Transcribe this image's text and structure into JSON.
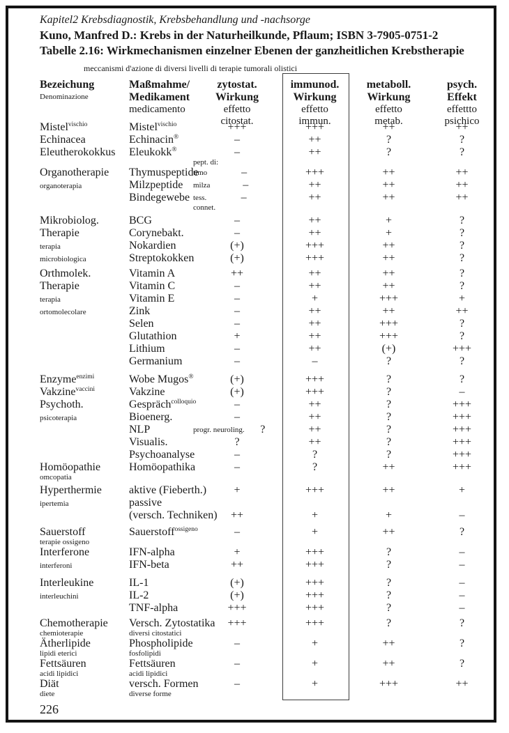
{
  "header": {
    "chapter": "Kapitel2 Krebsdiagnostik, Krebsbehandlung und -nachsorge",
    "source": "Kuno, Manfred D.: Krebs in der Naturheilkunde, Pflaum; ISBN 3-7905-0751-2",
    "table_title": "Tabelle 2.16: Wirkmechanismen einzelner Ebenen der ganzheitlichen Krebstherapie",
    "subtitle_it": "meccanismi d'azione di diversi livelli di terapie tumorali olistici"
  },
  "col_headers": {
    "c1": {
      "b1": "Bezeichung",
      "s1": "Denominazione"
    },
    "c2": {
      "b1": "Maßmahme/",
      "b2": "Medikament",
      "r1": "medicamento"
    },
    "c3": {
      "b1": "zytostat.",
      "b2": "Wirkung",
      "r1": "effetto",
      "r2": "citostat."
    },
    "c4": {
      "b1": "immunod.",
      "b2": "Wirkung",
      "r1": "effetto",
      "r2": "immun."
    },
    "c5": {
      "b1": "metaboll.",
      "b2": "Wirkung",
      "r1": "effetto",
      "r2": "metab."
    },
    "c6": {
      "b1": "psych.",
      "b2": "Effekt",
      "r1": "effettto",
      "r2": "psichico"
    }
  },
  "page": {
    "number": "226"
  },
  "rows": [
    {
      "name": "Mistel",
      "name_sup": "vischio",
      "treat": "Mistel",
      "treat_sup": "vischio",
      "v": [
        "+++",
        "+++",
        "++",
        "++"
      ]
    },
    {
      "name": "Echinacea",
      "treat": "Echinacin",
      "treat_sup": "®",
      "v": [
        "–",
        "++",
        "?",
        "?"
      ]
    },
    {
      "name": "Eleutherokokkus",
      "treat": "Eleukokk",
      "treat_sup": "®",
      "v": [
        "–",
        "++",
        "?",
        "?"
      ]
    },
    {
      "ann": "pept. di:",
      "small": true
    },
    {
      "name": "Organotherapie",
      "treat": "Thymuspeptide",
      "ann": "timo",
      "v": [
        "–",
        "+++",
        "++",
        "++"
      ]
    },
    {
      "name": "organoterapia",
      "name_small": true,
      "treat": "Milzpeptide",
      "ann": "milza",
      "v": [
        "–",
        "++",
        "++",
        "++"
      ]
    },
    {
      "treat": "Bindegewebe",
      "ann": "tess.",
      "v": [
        "–",
        "++",
        "++",
        "++"
      ]
    },
    {
      "ann": "connet.",
      "small": true
    },
    {
      "name": "Mikrobiolog.",
      "treat": "BCG",
      "v": [
        "–",
        "++",
        "+",
        "?"
      ],
      "gap": 4
    },
    {
      "name": "Therapie",
      "treat": "Corynebakt.",
      "v": [
        "–",
        "++",
        "+",
        "?"
      ]
    },
    {
      "name": "terapia",
      "name_small": true,
      "treat": "Nokardien",
      "v": [
        "(+)",
        "+++",
        "++",
        "?"
      ]
    },
    {
      "name": "microbiologica",
      "name_small": true,
      "treat": "Streptokokken",
      "v": [
        "(+)",
        "+++",
        "++",
        "?"
      ]
    },
    {
      "name": "Orthmolek.",
      "treat": "Vitamin A",
      "v": [
        "++",
        "++",
        "++",
        "?"
      ],
      "gap": 4
    },
    {
      "name": "Therapie",
      "treat": "Vitamin C",
      "v": [
        "–",
        "++",
        "++",
        "?"
      ]
    },
    {
      "name": "terapia",
      "name_small": true,
      "treat": "Vitamin E",
      "v": [
        "–",
        "+",
        "+++",
        "+"
      ]
    },
    {
      "name": "ortomolecolare",
      "name_small": true,
      "treat": "Zink",
      "v": [
        "–",
        "++",
        "++",
        "++"
      ]
    },
    {
      "treat": "Selen",
      "v": [
        "–",
        "++",
        "+++",
        "?"
      ]
    },
    {
      "treat": "Glutathion",
      "v": [
        "+",
        "++",
        "+++",
        "?"
      ]
    },
    {
      "treat": "Lithium",
      "v": [
        "–",
        "++",
        "(+)",
        "+++"
      ]
    },
    {
      "treat": "Germanium",
      "v": [
        "–",
        "–",
        "?",
        "?"
      ]
    },
    {
      "name": "Enzyme",
      "name_sup": "enzimi",
      "treat": "Wobe Mugos",
      "treat_sup": "®",
      "v": [
        "(+)",
        "+++",
        "?",
        "?"
      ],
      "gap": 8
    },
    {
      "name": "Vakzine",
      "name_sup": "vaccini",
      "treat": "Vakzine",
      "v": [
        "(+)",
        "+++",
        "?",
        "–"
      ]
    },
    {
      "name": "Psychoth.",
      "treat": "Gespräch",
      "treat_sup": "colloquio",
      "v": [
        "–",
        "++",
        "?",
        "+++"
      ]
    },
    {
      "name": "psicoterapia",
      "name_small": true,
      "treat": "Bioenerg.",
      "v": [
        "–",
        "++",
        "?",
        "+++"
      ]
    },
    {
      "treat": "NLP",
      "ann": "progr. neuroling.",
      "v": [
        "?",
        "++",
        "?",
        "+++"
      ]
    },
    {
      "treat": "Visualis.",
      "v": [
        "?",
        "++",
        "?",
        "+++"
      ]
    },
    {
      "treat": "Psychoanalyse",
      "v": [
        "–",
        "?",
        "?",
        "+++"
      ]
    },
    {
      "name": "Homöopathie",
      "treat": "Homöopathika",
      "v": [
        "–",
        "?",
        "++",
        "+++"
      ]
    },
    {
      "name": "omcopatia",
      "name_small": true,
      "small": true
    },
    {
      "name": "Hyperthermie",
      "treat": "aktive (Fieberth.)",
      "v": [
        "+",
        "+++",
        "++",
        "+"
      ],
      "gap": 4
    },
    {
      "name": "ipertemia",
      "name_small": true,
      "treat": "passive",
      "v": [
        "",
        "",
        "",
        ""
      ]
    },
    {
      "treat": "(versch. Techniken)",
      "v": [
        "++",
        "+",
        "+",
        "–"
      ]
    },
    {
      "name": "Sauerstoff",
      "treat": "Sauerstoff",
      "treat_sup": "ossigeno",
      "v": [
        "–",
        "+",
        "++",
        "?"
      ],
      "gap": 6
    },
    {
      "name": "terapie ossigeno",
      "name_small": true,
      "small": true
    },
    {
      "name": "Interferone",
      "treat": "IFN-alpha",
      "v": [
        "+",
        "+++",
        "?",
        "–"
      ]
    },
    {
      "name": "interferoni",
      "name_small": true,
      "treat": "IFN-beta",
      "v": [
        "++",
        "+++",
        "?",
        "–"
      ]
    },
    {
      "name": "Interleukine",
      "treat": "IL-1",
      "v": [
        "(+)",
        "+++",
        "?",
        "–"
      ],
      "gap": 8
    },
    {
      "name": "interleuchini",
      "name_small": true,
      "treat": "IL-2",
      "v": [
        "(+)",
        "+++",
        "?",
        "–"
      ]
    },
    {
      "treat": "TNF-alpha",
      "v": [
        "+++",
        "+++",
        "?",
        "–"
      ]
    },
    {
      "name": "Chemotherapie",
      "treat": "Versch. Zytostatika",
      "v": [
        "+++",
        "+++",
        "?",
        "?"
      ],
      "gap": 4
    },
    {
      "name": "chemioterapie",
      "name_small": true,
      "treat": "diversi citostatici",
      "treat_small": true,
      "small": true
    },
    {
      "name": "Ätherlipide",
      "treat": "Phospholipide",
      "v": [
        "–",
        "+",
        "++",
        "?"
      ]
    },
    {
      "name": "lipidi eterici",
      "name_small": true,
      "treat": "fosfolipidi",
      "treat_small": true,
      "small": true
    },
    {
      "name": "Fettsäuren",
      "treat": "Fettsäuren",
      "v": [
        "–",
        "+",
        "++",
        "?"
      ]
    },
    {
      "name": "acidi lipidici",
      "name_small": true,
      "treat": "acidi lipidici",
      "treat_small": true,
      "small": true
    },
    {
      "name": "Diät",
      "treat": "versch. Formen",
      "v": [
        "–",
        "+",
        "+++",
        "++"
      ]
    },
    {
      "name": "diete",
      "name_small": true,
      "treat": "diverse forme",
      "treat_small": true,
      "small": true
    }
  ]
}
